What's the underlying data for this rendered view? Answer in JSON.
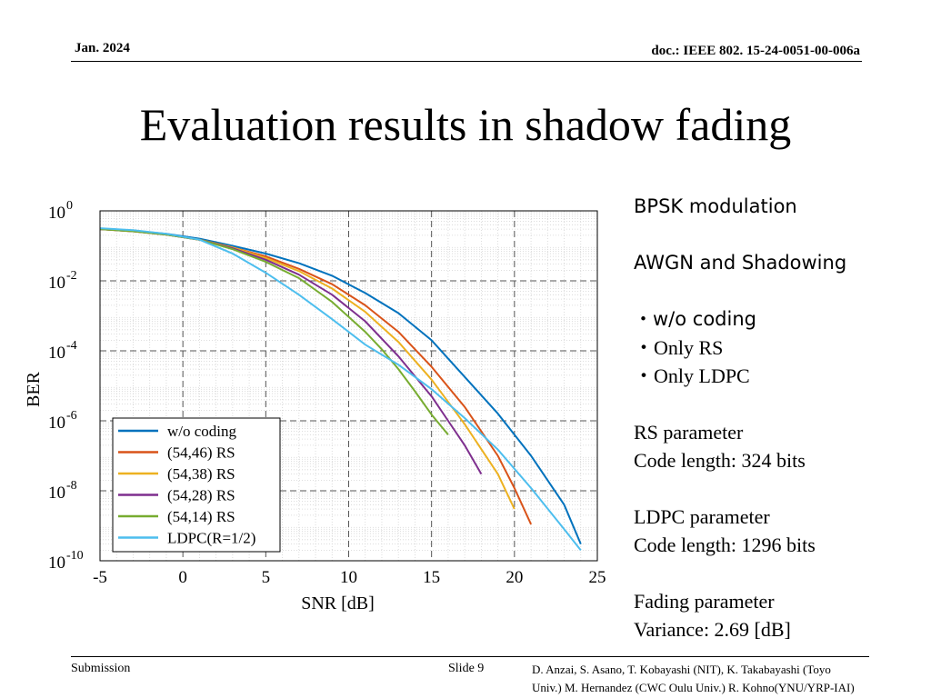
{
  "header": {
    "date": "Jan. 2024",
    "doc": "doc.: IEEE 802. 15-24-0051-00-006a"
  },
  "title": "Evaluation results in shadow fading",
  "notes": {
    "modulation": "BPSK modulation",
    "channel": "AWGN and Shadowing",
    "bullets": [
      "・w/o coding",
      "・Only RS",
      "・Only LDPC"
    ],
    "rs_heading": "RS parameter",
    "rs_value": "Code length: 324 bits",
    "ldpc_heading": "LDPC parameter",
    "ldpc_value": "Code length: 1296 bits",
    "fading_heading": "Fading parameter",
    "fading_value": "Variance: 2.69 [dB]"
  },
  "footer": {
    "submission": "Submission",
    "slide": "Slide 9",
    "authors_line1": "D. Anzai, S. Asano,  T. Kobayashi (NIT), K. Takabayashi (Toyo",
    "authors_line2": "Univ.) M. Hernandez (CWC Oulu Univ.) R. Kohno(YNU/YRP-IAI)"
  },
  "chart_data": {
    "type": "line",
    "y_scale": "log",
    "xlabel": "SNR [dB]",
    "ylabel": "BER",
    "xlim": [
      -5,
      25
    ],
    "ylim": [
      1e-10,
      1
    ],
    "x_ticks": [
      "-5",
      "0",
      "5",
      "10",
      "15",
      "20",
      "25"
    ],
    "y_ticks": [
      {
        "base": "10",
        "exp": "0"
      },
      {
        "base": "10",
        "exp": "-2"
      },
      {
        "base": "10",
        "exp": "-4"
      },
      {
        "base": "10",
        "exp": "-6"
      },
      {
        "base": "10",
        "exp": "-8"
      },
      {
        "base": "10",
        "exp": "-10"
      }
    ],
    "grid": true,
    "legend_position": "bottom-left",
    "series": [
      {
        "name": "w/o coding",
        "color": "#0072BD",
        "x": [
          -5,
          -3,
          -1,
          1,
          3,
          5,
          7,
          9,
          11,
          13,
          15,
          17,
          19,
          21,
          23,
          24
        ],
        "y": [
          0.3,
          0.27,
          0.22,
          0.16,
          0.1,
          0.06,
          0.032,
          0.014,
          0.0045,
          0.0012,
          0.0002,
          1.8e-05,
          1.6e-06,
          1e-07,
          4e-09,
          3e-10
        ]
      },
      {
        "name": "(54,46) RS",
        "color": "#D95319",
        "x": [
          -5,
          -3,
          -1,
          1,
          3,
          5,
          7,
          9,
          11,
          13,
          15,
          17,
          19,
          20,
          21
        ],
        "y": [
          0.3,
          0.26,
          0.21,
          0.15,
          0.09,
          0.05,
          0.022,
          0.008,
          0.002,
          0.00035,
          3.5e-05,
          2.5e-06,
          1e-07,
          1.2e-08,
          1.1e-09
        ]
      },
      {
        "name": "(54,38) RS",
        "color": "#EDB120",
        "x": [
          -5,
          -3,
          -1,
          1,
          3,
          5,
          7,
          9,
          11,
          13,
          15,
          17,
          19,
          20
        ],
        "y": [
          0.3,
          0.26,
          0.21,
          0.15,
          0.09,
          0.045,
          0.019,
          0.006,
          0.0013,
          0.00018,
          1.5e-05,
          8e-07,
          3e-08,
          3e-09
        ]
      },
      {
        "name": "(54,28) RS",
        "color": "#7E2F8E",
        "x": [
          -5,
          -3,
          -1,
          1,
          3,
          5,
          7,
          9,
          11,
          13,
          15,
          16,
          17,
          18
        ],
        "y": [
          0.3,
          0.26,
          0.21,
          0.15,
          0.085,
          0.04,
          0.015,
          0.004,
          0.0007,
          7e-05,
          5e-06,
          1e-06,
          2e-07,
          3e-08
        ]
      },
      {
        "name": "(54,14) RS",
        "color": "#77AC30",
        "x": [
          -5,
          -3,
          -1,
          1,
          3,
          5,
          7,
          9,
          11,
          12,
          13,
          14,
          15,
          16
        ],
        "y": [
          0.3,
          0.26,
          0.21,
          0.15,
          0.08,
          0.035,
          0.012,
          0.0025,
          0.00035,
          0.00011,
          3e-05,
          7e-06,
          1.5e-06,
          4e-07
        ]
      },
      {
        "name": "LDPC(R=1/2)",
        "color": "#4DBEEE",
        "x": [
          -5,
          -3,
          -1,
          1,
          3,
          5,
          7,
          9,
          11,
          13,
          15,
          17,
          19,
          21,
          23,
          24
        ],
        "y": [
          0.32,
          0.28,
          0.22,
          0.15,
          0.06,
          0.017,
          0.004,
          0.0008,
          0.00015,
          4e-05,
          8e-06,
          1.2e-06,
          1.5e-07,
          1.2e-08,
          8e-10,
          2e-10
        ]
      }
    ]
  }
}
